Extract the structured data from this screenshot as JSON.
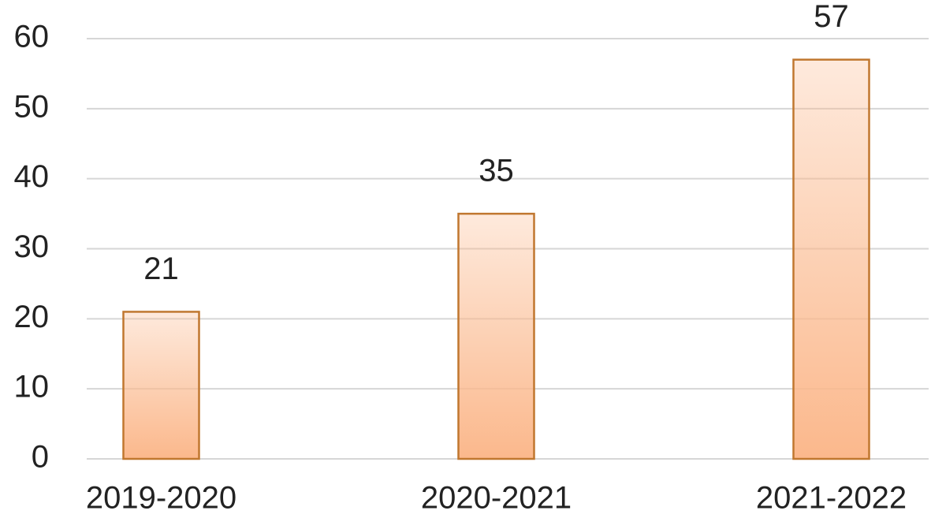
{
  "chart_data": {
    "type": "bar",
    "categories": [
      "2019-2020",
      "2020-2021",
      "2021-2022"
    ],
    "values": [
      21,
      35,
      57
    ],
    "color": "#fbb88c",
    "edgecolor": "#c0772f",
    "ylim": [
      0,
      60
    ],
    "yticks": [
      0,
      10,
      20,
      30,
      40,
      50,
      60
    ],
    "grid": true
  }
}
